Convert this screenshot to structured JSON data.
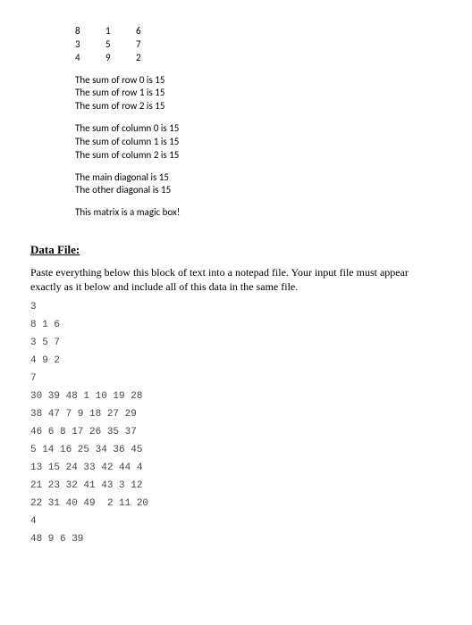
{
  "matrix": {
    "rows": [
      [
        "8",
        "1",
        "6"
      ],
      [
        "3",
        "5",
        "7"
      ],
      [
        "4",
        "9",
        "2"
      ]
    ]
  },
  "row_sums": [
    "The sum of row 0 is 15",
    "The sum of row 1 is 15",
    "The sum of row 2 is 15"
  ],
  "col_sums": [
    "The sum of column 0 is 15",
    "The sum of column 1 is 15",
    "The sum of column 2 is 15"
  ],
  "diagonals": [
    "The main diagonal is 15",
    "The other diagonal is 15"
  ],
  "conclusion": "This matrix is a magic box!",
  "heading": "Data File:",
  "instructions": "Paste everything below this block of text into a notepad file. Your input file must appear exactly as it below and include all of this data in the same file.",
  "data_lines": [
    "3",
    "8 1 6",
    "3 5 7",
    "4 9 2",
    "7",
    "30 39 48 1 10 19 28",
    "38 47 7 9 18 27 29",
    "46 6 8 17 26 35 37",
    "5 14 16 25 34 36 45",
    "13 15 24 33 42 44 4",
    "21 23 32 41 43 3 12",
    "22 31 40 49  2 11 20",
    "4",
    "48 9 6 39"
  ]
}
